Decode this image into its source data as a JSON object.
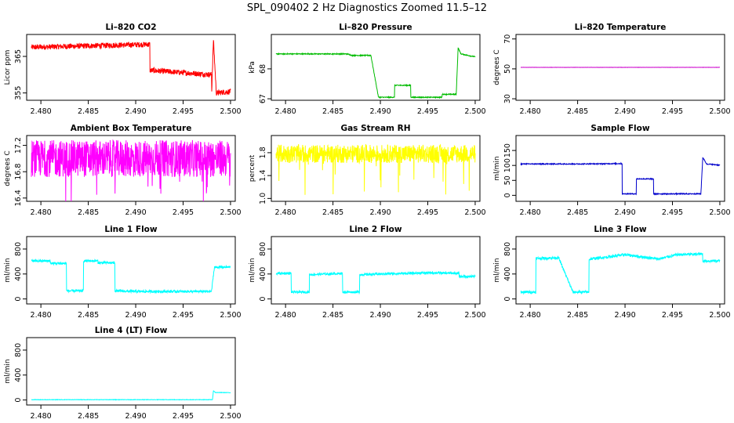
{
  "title": "SPL_090402  2 Hz Diagnostics Zoomed 11.5–12",
  "x_ticks": [
    "2.480",
    "2.485",
    "2.490",
    "2.495",
    "2.500"
  ],
  "chart_data": [
    {
      "type": "line",
      "title": "Li–820 CO2",
      "ylabel": "Licor ppm",
      "color": "#ff0000",
      "xlim": [
        2.4785,
        2.5005
      ],
      "ylim": [
        353,
        371
      ],
      "yticks": [
        355,
        365
      ],
      "series": [
        {
          "x": [
            2.479,
            2.4915,
            2.4915,
            2.498,
            2.498,
            2.4982,
            2.4985,
            2.4985,
            2.5
          ],
          "y": [
            367.5,
            368.3,
            361.2,
            360.0,
            354.5,
            369.5,
            355.0,
            355.0,
            355.4
          ]
        }
      ]
    },
    {
      "type": "line",
      "title": "Li–820 Pressure",
      "ylabel": "kPa",
      "color": "#00bb00",
      "xlim": [
        2.4785,
        2.5005
      ],
      "ylim": [
        66.95,
        69.15
      ],
      "yticks": [
        67.0,
        68.0
      ],
      "series": [
        {
          "x": [
            2.479,
            2.4865,
            2.487,
            2.4885,
            2.489,
            2.4898,
            2.4898,
            2.4915,
            2.4915,
            2.4932,
            2.4932,
            2.4965,
            2.4965,
            2.498,
            2.4982,
            2.4985,
            2.5
          ],
          "y": [
            68.5,
            68.5,
            68.45,
            68.45,
            68.45,
            67.05,
            67.05,
            67.05,
            67.45,
            67.45,
            67.05,
            67.05,
            67.15,
            67.15,
            68.7,
            68.5,
            68.4
          ]
        }
      ]
    },
    {
      "type": "line",
      "title": "Li–820 Temperature",
      "ylabel": "degrees C",
      "color": "#cc00cc",
      "xlim": [
        2.4785,
        2.5005
      ],
      "ylim": [
        29,
        73
      ],
      "yticks": [
        30,
        50,
        70
      ],
      "series": [
        {
          "x": [
            2.479,
            2.5
          ],
          "y": [
            51,
            51
          ]
        }
      ]
    },
    {
      "type": "line",
      "title": "Ambient Box Temperature",
      "ylabel": "degrees C",
      "color": "#ff00ff",
      "xlim": [
        2.4785,
        2.5005
      ],
      "ylim": [
        16.35,
        17.35
      ],
      "yticks": [
        16.4,
        16.8,
        17.2
      ],
      "series": [
        {
          "x": [
            2.479,
            2.5
          ],
          "y": [
            17.0,
            17.0
          ]
        }
      ]
    },
    {
      "type": "line",
      "title": "Gas Stream RH",
      "ylabel": "percent",
      "color": "#ffff00",
      "xlim": [
        2.4785,
        2.5005
      ],
      "ylim": [
        0.95,
        2.1
      ],
      "yticks": [
        1.0,
        1.4,
        1.8
      ],
      "series": [
        {
          "x": [
            2.479,
            2.5
          ],
          "y": [
            1.78,
            1.78
          ]
        }
      ]
    },
    {
      "type": "line",
      "title": "Sample Flow",
      "ylabel": "ml/min",
      "color": "#0000cc",
      "xlim": [
        2.4785,
        2.5005
      ],
      "ylim": [
        -20,
        200
      ],
      "yticks": [
        0,
        50,
        100,
        150
      ],
      "series": [
        {
          "x": [
            2.479,
            2.486,
            2.489,
            2.4897,
            2.4897,
            2.4912,
            2.4912,
            2.493,
            2.493,
            2.498,
            2.498,
            2.4982,
            2.4986,
            2.5
          ],
          "y": [
            105,
            105,
            106,
            106,
            5,
            5,
            55,
            55,
            5,
            5,
            5,
            127,
            105,
            101
          ]
        }
      ]
    },
    {
      "type": "line",
      "title": "Line 1 Flow",
      "ylabel": "ml/min",
      "color": "#00ffff",
      "xlim": [
        2.4785,
        2.5005
      ],
      "ylim": [
        -80,
        1000
      ],
      "yticks": [
        0,
        400,
        800
      ],
      "series": [
        {
          "x": [
            2.479,
            2.481,
            2.481,
            2.4827,
            2.4827,
            2.4845,
            2.4845,
            2.486,
            2.486,
            2.4878,
            2.4878,
            2.49,
            2.498,
            2.498,
            2.4983,
            2.5
          ],
          "y": [
            610,
            610,
            570,
            570,
            130,
            130,
            610,
            610,
            580,
            580,
            130,
            120,
            120,
            130,
            510,
            510
          ]
        }
      ]
    },
    {
      "type": "line",
      "title": "Line 2 Flow",
      "ylabel": "ml/min",
      "color": "#00ffff",
      "xlim": [
        2.4785,
        2.5005
      ],
      "ylim": [
        -80,
        1000
      ],
      "yticks": [
        0,
        400,
        800
      ],
      "series": [
        {
          "x": [
            2.479,
            2.4806,
            2.4806,
            2.4825,
            2.4825,
            2.486,
            2.486,
            2.4878,
            2.4878,
            2.4925,
            2.4955,
            2.4983,
            2.4983,
            2.5
          ],
          "y": [
            410,
            410,
            110,
            110,
            390,
            410,
            110,
            110,
            390,
            410,
            420,
            410,
            360,
            360
          ]
        }
      ]
    },
    {
      "type": "line",
      "title": "Line 3 Flow",
      "ylabel": "ml/min",
      "color": "#00ffff",
      "xlim": [
        2.4785,
        2.5005
      ],
      "ylim": [
        -80,
        1000
      ],
      "yticks": [
        0,
        400,
        800
      ],
      "series": [
        {
          "x": [
            2.479,
            2.4806,
            2.4806,
            2.483,
            2.483,
            2.4845,
            2.4845,
            2.4862,
            2.4862,
            2.4875,
            2.49,
            2.4935,
            2.4955,
            2.4982,
            2.4982,
            2.5
          ],
          "y": [
            110,
            110,
            650,
            660,
            660,
            110,
            110,
            110,
            640,
            660,
            710,
            640,
            710,
            720,
            610,
            610
          ]
        }
      ]
    },
    {
      "type": "line",
      "title": "Line 4 (LT) Flow",
      "ylabel": "ml/min",
      "color": "#00ffff",
      "xlim": [
        2.4785,
        2.5005
      ],
      "ylim": [
        -80,
        1000
      ],
      "yticks": [
        0,
        400,
        800
      ],
      "series": [
        {
          "x": [
            2.479,
            2.4981,
            2.4982,
            2.4984,
            2.5
          ],
          "y": [
            5,
            5,
            150,
            120,
            118
          ]
        }
      ]
    }
  ]
}
